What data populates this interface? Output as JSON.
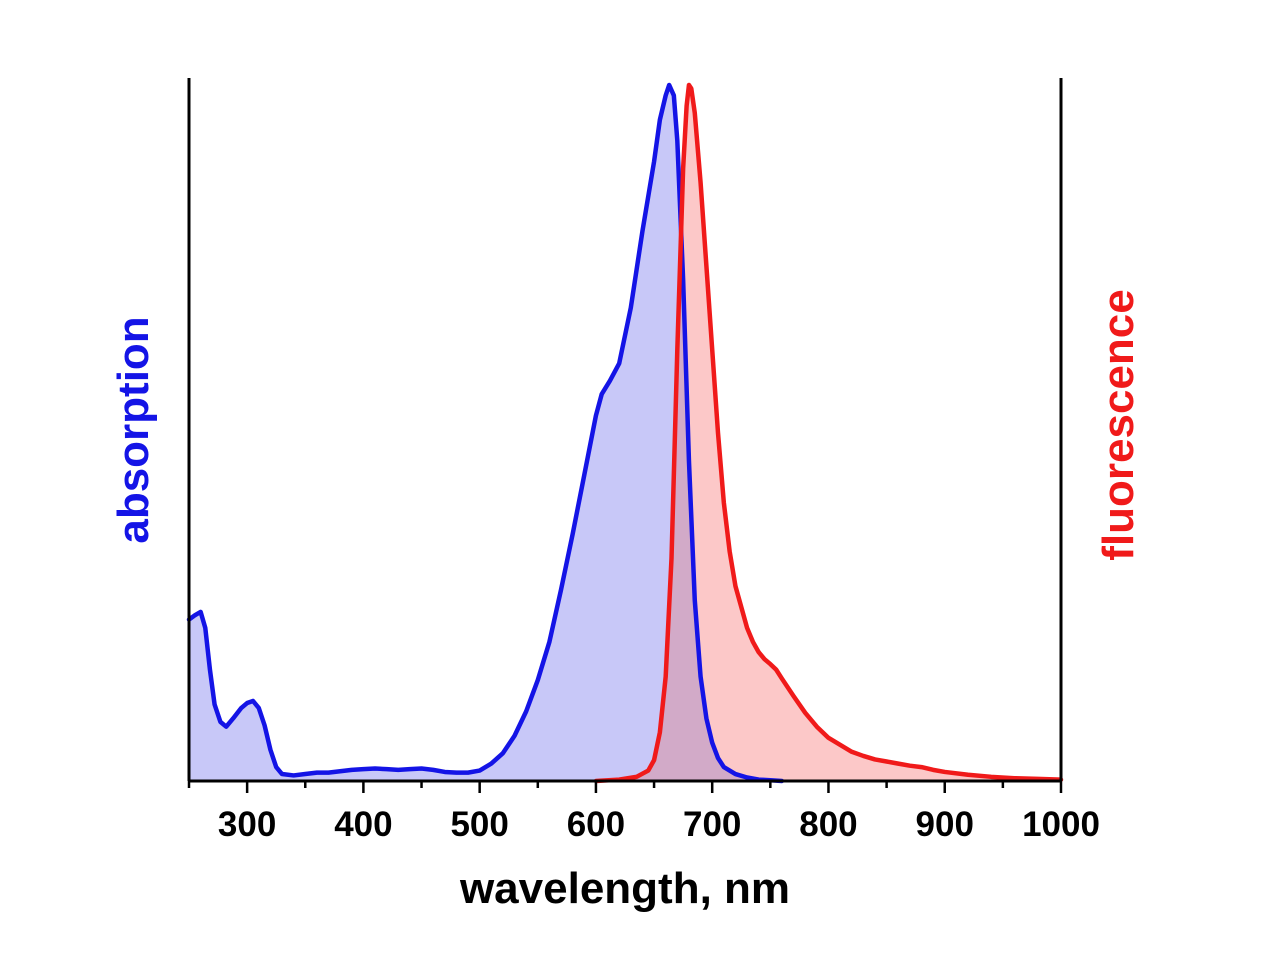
{
  "chart_data": {
    "type": "area",
    "xlabel": "wavelength, nm",
    "ylabel_left": "absorption",
    "ylabel_right": "fluorescence",
    "xlim": [
      250,
      1000
    ],
    "ylim": [
      0,
      1
    ],
    "x_ticks": [
      300,
      400,
      500,
      600,
      700,
      800,
      900,
      1000
    ],
    "x_tick_labels": [
      "300",
      "400",
      "500",
      "600",
      "700",
      "800",
      "900",
      "1000"
    ],
    "grid": false,
    "legend": "none",
    "colors": {
      "absorption_line": "#1414e6",
      "absorption_fill": "#c8c8f8",
      "fluorescence_line": "#f01a1a",
      "fluorescence_fill": "#fcc8c8",
      "overlap_fill": "#d2aac8",
      "axis": "#000000"
    },
    "series": [
      {
        "axis": "left",
        "points": [
          [
            250,
            0.232
          ],
          [
            255,
            0.238
          ],
          [
            260,
            0.243
          ],
          [
            264,
            0.22
          ],
          [
            268,
            0.16
          ],
          [
            272,
            0.11
          ],
          [
            277,
            0.085
          ],
          [
            282,
            0.078
          ],
          [
            288,
            0.09
          ],
          [
            295,
            0.105
          ],
          [
            300,
            0.112
          ],
          [
            305,
            0.115
          ],
          [
            310,
            0.105
          ],
          [
            315,
            0.08
          ],
          [
            320,
            0.045
          ],
          [
            325,
            0.02
          ],
          [
            330,
            0.01
          ],
          [
            340,
            0.008
          ],
          [
            350,
            0.01
          ],
          [
            360,
            0.012
          ],
          [
            370,
            0.012
          ],
          [
            380,
            0.014
          ],
          [
            390,
            0.016
          ],
          [
            400,
            0.017
          ],
          [
            410,
            0.018
          ],
          [
            420,
            0.017
          ],
          [
            430,
            0.016
          ],
          [
            440,
            0.017
          ],
          [
            450,
            0.018
          ],
          [
            460,
            0.016
          ],
          [
            470,
            0.013
          ],
          [
            480,
            0.012
          ],
          [
            490,
            0.012
          ],
          [
            500,
            0.015
          ],
          [
            510,
            0.025
          ],
          [
            520,
            0.04
          ],
          [
            530,
            0.065
          ],
          [
            540,
            0.1
          ],
          [
            550,
            0.145
          ],
          [
            560,
            0.2
          ],
          [
            570,
            0.275
          ],
          [
            580,
            0.355
          ],
          [
            590,
            0.44
          ],
          [
            600,
            0.525
          ],
          [
            605,
            0.556
          ],
          [
            612,
            0.575
          ],
          [
            620,
            0.6
          ],
          [
            630,
            0.68
          ],
          [
            640,
            0.79
          ],
          [
            650,
            0.89
          ],
          [
            655,
            0.95
          ],
          [
            660,
            0.985
          ],
          [
            663,
            1.0
          ],
          [
            667,
            0.985
          ],
          [
            670,
            0.92
          ],
          [
            675,
            0.72
          ],
          [
            680,
            0.46
          ],
          [
            685,
            0.26
          ],
          [
            690,
            0.15
          ],
          [
            695,
            0.09
          ],
          [
            700,
            0.055
          ],
          [
            705,
            0.033
          ],
          [
            710,
            0.02
          ],
          [
            720,
            0.01
          ],
          [
            730,
            0.005
          ],
          [
            740,
            0.002
          ],
          [
            750,
            0.001
          ],
          [
            760,
            0.0
          ]
        ]
      },
      {
        "axis": "right",
        "points": [
          [
            600,
            0.0
          ],
          [
            620,
            0.002
          ],
          [
            635,
            0.006
          ],
          [
            645,
            0.015
          ],
          [
            650,
            0.03
          ],
          [
            655,
            0.07
          ],
          [
            660,
            0.15
          ],
          [
            665,
            0.32
          ],
          [
            670,
            0.62
          ],
          [
            675,
            0.88
          ],
          [
            678,
            0.97
          ],
          [
            680,
            1.0
          ],
          [
            682,
            0.995
          ],
          [
            685,
            0.96
          ],
          [
            690,
            0.86
          ],
          [
            695,
            0.74
          ],
          [
            700,
            0.62
          ],
          [
            705,
            0.5
          ],
          [
            710,
            0.4
          ],
          [
            715,
            0.33
          ],
          [
            720,
            0.28
          ],
          [
            725,
            0.25
          ],
          [
            730,
            0.22
          ],
          [
            735,
            0.2
          ],
          [
            740,
            0.185
          ],
          [
            745,
            0.175
          ],
          [
            750,
            0.168
          ],
          [
            755,
            0.16
          ],
          [
            760,
            0.147
          ],
          [
            770,
            0.122
          ],
          [
            780,
            0.098
          ],
          [
            790,
            0.078
          ],
          [
            800,
            0.062
          ],
          [
            810,
            0.052
          ],
          [
            820,
            0.042
          ],
          [
            830,
            0.036
          ],
          [
            840,
            0.031
          ],
          [
            850,
            0.028
          ],
          [
            860,
            0.025
          ],
          [
            870,
            0.022
          ],
          [
            880,
            0.02
          ],
          [
            890,
            0.016
          ],
          [
            900,
            0.013
          ],
          [
            920,
            0.009
          ],
          [
            940,
            0.006
          ],
          [
            960,
            0.004
          ],
          [
            980,
            0.003
          ],
          [
            1000,
            0.002
          ]
        ]
      }
    ]
  }
}
